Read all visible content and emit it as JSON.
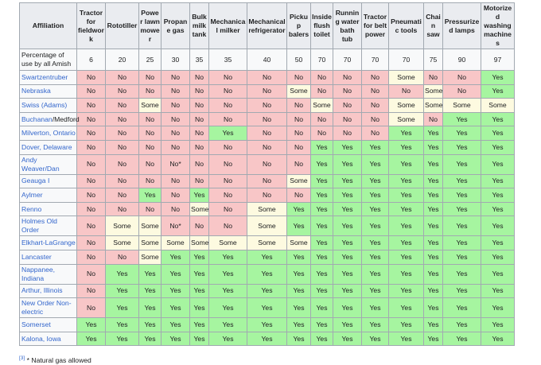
{
  "table": {
    "headers": [
      "Affiliation",
      "Tractor for fieldwork",
      "Rototiller",
      "Power lawn mower",
      "Propane gas",
      "Bulk milk tank",
      "Mechanical milker",
      "Mechanical refrigerator",
      "Pickup balers",
      "Inside flush toilet",
      "Running water bath tub",
      "Tractor for belt power",
      "Pneumatic tools",
      "Chain saw",
      "Pressurized lamps",
      "Motorized washing machines"
    ],
    "percentage_row": {
      "label": "Percentage of use by all Amish",
      "values": [
        "6",
        "20",
        "25",
        "30",
        "35",
        "35",
        "40",
        "50",
        "70",
        "70",
        "70",
        "70",
        "75",
        "90",
        "97"
      ]
    },
    "rows": [
      {
        "name": "Swartzentruber",
        "cells": [
          "No",
          "No",
          "No",
          "No",
          "No",
          "No",
          "No",
          "No",
          "No",
          "No",
          "No",
          "Some",
          "No",
          "No",
          "Yes"
        ]
      },
      {
        "name": "Nebraska",
        "cells": [
          "No",
          "No",
          "No",
          "No",
          "No",
          "No",
          "No",
          "Some",
          "No",
          "No",
          "No",
          "No",
          "Some",
          "No",
          "Yes"
        ]
      },
      {
        "name": "Swiss (Adams)",
        "cells": [
          "No",
          "No",
          "Some",
          "No",
          "No",
          "No",
          "No",
          "No",
          "Some",
          "No",
          "No",
          "Some",
          "Some",
          "Some",
          "Some"
        ]
      },
      {
        "name": "Buchanan",
        "name_suffix": "/Medford",
        "cells": [
          "No",
          "No",
          "No",
          "No",
          "No",
          "No",
          "No",
          "No",
          "No",
          "No",
          "No",
          "Some",
          "No",
          "Yes",
          "Yes"
        ]
      },
      {
        "name": "Milverton, Ontario",
        "cells": [
          "No",
          "No",
          "No",
          "No",
          "No",
          "Yes",
          "No",
          "No",
          "No",
          "No",
          "No",
          "Yes",
          "Yes",
          "Yes",
          "Yes"
        ]
      },
      {
        "name": "Dover, Delaware",
        "cells": [
          "No",
          "No",
          "No",
          "No",
          "No",
          "No",
          "No",
          "No",
          "Yes",
          "Yes",
          "Yes",
          "Yes",
          "Yes",
          "Yes",
          "Yes"
        ]
      },
      {
        "name": "Andy Weaver/Dan",
        "cells": [
          "No",
          "No",
          "No",
          "No*",
          "No",
          "No",
          "No",
          "No",
          "Yes",
          "Yes",
          "Yes",
          "Yes",
          "Yes",
          "Yes",
          "Yes"
        ]
      },
      {
        "name": "Geauga I",
        "cells": [
          "No",
          "No",
          "No",
          "No",
          "No",
          "No",
          "No",
          "Some",
          "Yes",
          "Yes",
          "Yes",
          "Yes",
          "Yes",
          "Yes",
          "Yes"
        ]
      },
      {
        "name": "Aylmer",
        "cells": [
          "No",
          "No",
          "Yes",
          "No",
          "Yes",
          "No",
          "No",
          "No",
          "Yes",
          "Yes",
          "Yes",
          "Yes",
          "Yes",
          "Yes",
          "Yes"
        ]
      },
      {
        "name": "Renno",
        "cells": [
          "No",
          "No",
          "No",
          "No",
          "Some",
          "No",
          "Some",
          "Yes",
          "Yes",
          "Yes",
          "Yes",
          "Yes",
          "Yes",
          "Yes",
          "Yes"
        ]
      },
      {
        "name": "Holmes Old Order",
        "cells": [
          "No",
          "Some",
          "Some",
          "No*",
          "No",
          "No",
          "Some",
          "Yes",
          "Yes",
          "Yes",
          "Yes",
          "Yes",
          "Yes",
          "Yes",
          "Yes"
        ]
      },
      {
        "name": "Elkhart-LaGrange",
        "cells": [
          "No",
          "Some",
          "Some",
          "Some",
          "Some",
          "Some",
          "Some",
          "Some",
          "Yes",
          "Yes",
          "Yes",
          "Yes",
          "Yes",
          "Yes",
          "Yes"
        ]
      },
      {
        "name": "Lancaster",
        "cells": [
          "No",
          "No",
          "Some",
          "Yes",
          "Yes",
          "Yes",
          "Yes",
          "Yes",
          "Yes",
          "Yes",
          "Yes",
          "Yes",
          "Yes",
          "Yes",
          "Yes"
        ]
      },
      {
        "name": "Nappanee, Indiana",
        "cells": [
          "No",
          "Yes",
          "Yes",
          "Yes",
          "Yes",
          "Yes",
          "Yes",
          "Yes",
          "Yes",
          "Yes",
          "Yes",
          "Yes",
          "Yes",
          "Yes",
          "Yes"
        ]
      },
      {
        "name": "Arthur, Illinois",
        "cells": [
          "No",
          "Yes",
          "Yes",
          "Yes",
          "Yes",
          "Yes",
          "Yes",
          "Yes",
          "Yes",
          "Yes",
          "Yes",
          "Yes",
          "Yes",
          "Yes",
          "Yes"
        ]
      },
      {
        "name": "New Order Non-electric",
        "cells": [
          "No",
          "Yes",
          "Yes",
          "Yes",
          "Yes",
          "Yes",
          "Yes",
          "Yes",
          "Yes",
          "Yes",
          "Yes",
          "Yes",
          "Yes",
          "Yes",
          "Yes"
        ]
      },
      {
        "name": "Somerset",
        "cells": [
          "Yes",
          "Yes",
          "Yes",
          "Yes",
          "Yes",
          "Yes",
          "Yes",
          "Yes",
          "Yes",
          "Yes",
          "Yes",
          "Yes",
          "Yes",
          "Yes",
          "Yes"
        ]
      },
      {
        "name": "Kalona, Iowa",
        "cells": [
          "Yes",
          "Yes",
          "Yes",
          "Yes",
          "Yes",
          "Yes",
          "Yes",
          "Yes",
          "Yes",
          "Yes",
          "Yes",
          "Yes",
          "Yes",
          "Yes",
          "Yes"
        ]
      }
    ]
  },
  "footnote": {
    "ref": "[3]",
    "text": "* Natural gas allowed"
  },
  "colors": {
    "no": "#f8c6c7",
    "some": "#fdfae0",
    "yes": "#a6f5a0",
    "link": "#3366cc",
    "header": "#eaecf0"
  }
}
